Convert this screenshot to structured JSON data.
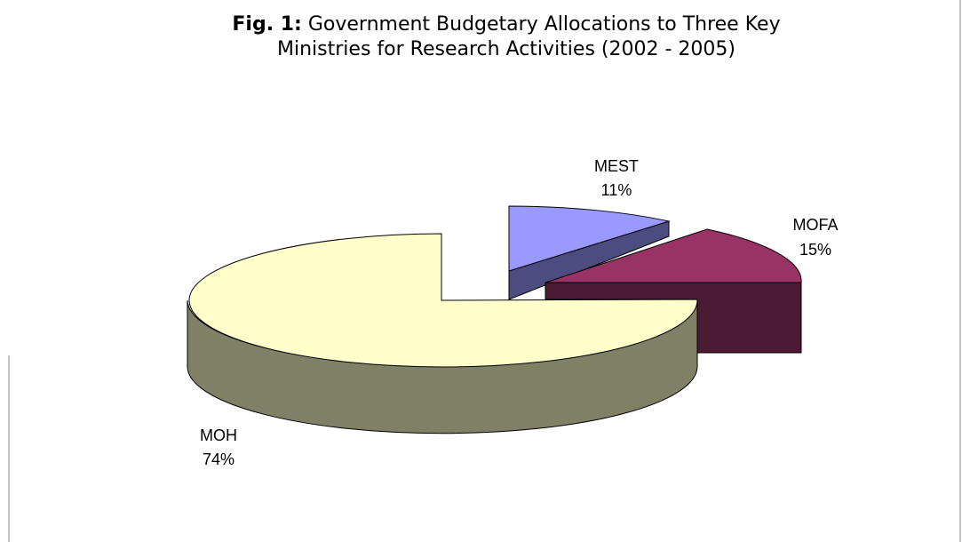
{
  "chart_data": {
    "type": "pie",
    "title_prefix": "Fig. 1:",
    "title_line1": "Government Budgetary Allocations to Three Key",
    "title_line2": "Ministries for Research Activities (2002 - 2005)",
    "slices": [
      {
        "name": "MEST",
        "percent": "11%",
        "value": 11,
        "top_color": "#9999ff",
        "side_color": "#4c4c80"
      },
      {
        "name": "MOFA",
        "percent": "15%",
        "value": 15,
        "top_color": "#993366",
        "side_color": "#4d1a33"
      },
      {
        "name": "MOH",
        "percent": "74%",
        "value": 74,
        "top_color": "#ffffcc",
        "side_color": "#808066"
      }
    ],
    "style": "3D exploded pie"
  }
}
